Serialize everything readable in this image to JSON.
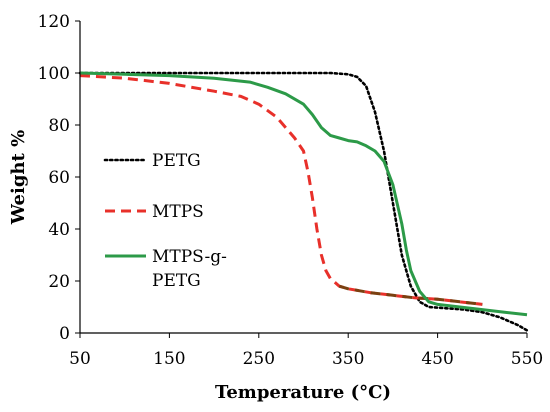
{
  "chart_data": {
    "type": "line",
    "title": "",
    "xlabel": "Temperature  (°C)",
    "ylabel": "Weight %",
    "xlim": [
      50,
      550
    ],
    "ylim": [
      0,
      120
    ],
    "xticks": [
      50,
      150,
      250,
      350,
      450,
      550
    ],
    "yticks": [
      0,
      20,
      40,
      60,
      80,
      100,
      120
    ],
    "grid": false,
    "legend_position": "left",
    "series": [
      {
        "name": "PETG",
        "legend_lines": [
          "PETG"
        ],
        "color": "#000000",
        "style": "dotted",
        "x": [
          50,
          100,
          150,
          200,
          250,
          300,
          330,
          350,
          360,
          370,
          380,
          390,
          400,
          410,
          420,
          430,
          440,
          460,
          480,
          500,
          520,
          540,
          550
        ],
        "y": [
          100,
          100,
          100,
          100,
          100,
          100,
          100,
          99.5,
          98.5,
          95,
          85,
          70,
          50,
          30,
          18,
          12,
          10,
          9.5,
          9,
          8,
          6,
          3,
          1
        ]
      },
      {
        "name": "MTPS",
        "legend_lines": [
          "MTPS"
        ],
        "color": "#e8302a",
        "color_tail": "#7a4010",
        "style": "dashed",
        "x": [
          50,
          100,
          150,
          200,
          230,
          250,
          270,
          290,
          300,
          305,
          310,
          315,
          320,
          325,
          330,
          340,
          350,
          375,
          400,
          425,
          450,
          475,
          500
        ],
        "y": [
          99,
          98,
          96,
          93,
          91,
          88,
          83,
          75,
          70,
          62,
          52,
          40,
          30,
          24,
          21,
          18,
          17,
          15.5,
          14.5,
          13.5,
          13,
          12,
          11
        ]
      },
      {
        "name": "MTPS-g-PETG",
        "legend_lines": [
          "MTPS-g-",
          "PETG"
        ],
        "color": "#2c9a48",
        "style": "solid",
        "x": [
          50,
          100,
          150,
          200,
          240,
          260,
          280,
          300,
          310,
          320,
          330,
          340,
          350,
          360,
          370,
          380,
          390,
          400,
          410,
          415,
          420,
          430,
          440,
          450,
          475,
          500,
          525,
          550
        ],
        "y": [
          100,
          99.5,
          99,
          98,
          96.5,
          94.5,
          92,
          88,
          84,
          79,
          76,
          75,
          74,
          73.5,
          72,
          70,
          66,
          57,
          42,
          32,
          24,
          16,
          12,
          11,
          10,
          9,
          8,
          7
        ]
      }
    ]
  }
}
